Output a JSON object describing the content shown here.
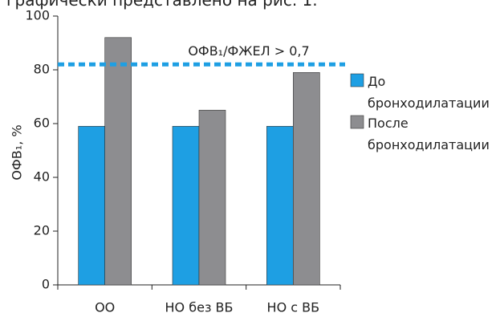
{
  "caption": "графически представлено на рис. 1.",
  "chart_data": {
    "type": "bar",
    "ylabel": "ОФВ₁, %",
    "categories": [
      "ОО",
      "НО без ВБ",
      "НО с ВБ"
    ],
    "series": [
      {
        "name": "До бронходилатации",
        "color": "#1e9fe3",
        "values": [
          59,
          59,
          59
        ]
      },
      {
        "name": "После бронходилатации",
        "color": "#8d8d90",
        "values": [
          92,
          65,
          79
        ]
      }
    ],
    "ylim": [
      0,
      100
    ],
    "yticks": [
      0,
      20,
      40,
      60,
      80,
      100
    ],
    "threshold": {
      "value": 82,
      "label": "ОФВ₁/ФЖЕЛ > 0,7",
      "color": "#1e9fe3"
    },
    "legend": "right"
  }
}
